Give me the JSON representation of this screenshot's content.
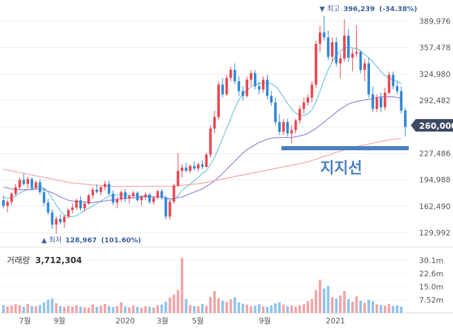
{
  "chart_data": {
    "type": "candlestick",
    "price_axis": {
      "ticks": [
        389976,
        357478,
        324980,
        292482,
        260000,
        227486,
        194988,
        162490,
        129992
      ],
      "tick_labels": [
        "389,976",
        "357,478",
        "324,980",
        "292,482",
        "260,000",
        "227,486",
        "194,988",
        "162,490",
        "129,992"
      ],
      "ylim": [
        114000,
        409000
      ]
    },
    "current_price": {
      "value": 260000,
      "label": "260,000"
    },
    "high_marker": {
      "prefix": "▼ 최고",
      "value": 396239,
      "label": "396,239",
      "change": "(-34.38%)"
    },
    "low_marker": {
      "prefix": "▲ 최저",
      "value": 128967,
      "label": "128,967",
      "change": "(101.60%)"
    },
    "annotation": {
      "text": "지지선",
      "level": 231000
    },
    "x_axis": {
      "tick_labels": [
        "7월",
        "9월",
        "2020",
        "3월",
        "5월",
        "9월",
        "2021"
      ]
    },
    "volume": {
      "title": "거래량",
      "current": "3,712,304",
      "tick_labels": [
        "30.1m",
        "22.6m",
        "15.0m",
        "7.52m"
      ],
      "tick_values": [
        30.1,
        22.6,
        15.0,
        7.52
      ],
      "max": 34
    },
    "ma_series": [
      {
        "key": "ma_short",
        "color": "#72c8dc"
      },
      {
        "key": "ma_mid",
        "color": "#9b86d6"
      },
      {
        "key": "ma_long",
        "color": "#f0a8a8"
      }
    ],
    "colors": {
      "up": "#e9444f",
      "down": "#2f86d8",
      "vol_up": "#f2a3a6",
      "vol_down": "#8ec2ec",
      "marker": "#3c5f9e",
      "support": "#4a7fc1",
      "current_tag": "#3c4a63"
    },
    "candles": [
      [
        170000,
        176000,
        160000,
        163000
      ],
      [
        163000,
        170000,
        155000,
        168000
      ],
      [
        168000,
        180000,
        164000,
        178000
      ],
      [
        178000,
        190000,
        175000,
        186000
      ],
      [
        186000,
        198000,
        183000,
        195000
      ],
      [
        195000,
        203000,
        188000,
        190000
      ],
      [
        190000,
        199000,
        184000,
        196000
      ],
      [
        196000,
        198000,
        182000,
        185000
      ],
      [
        185000,
        194000,
        183000,
        192000
      ],
      [
        192000,
        196000,
        177000,
        180000
      ],
      [
        180000,
        185000,
        163000,
        167000
      ],
      [
        167000,
        172000,
        152000,
        155000
      ],
      [
        155000,
        159000,
        135000,
        140000
      ],
      [
        140000,
        150000,
        129000,
        147000
      ],
      [
        147000,
        153000,
        140000,
        143000
      ],
      [
        143000,
        152000,
        136000,
        150000
      ],
      [
        150000,
        160000,
        147000,
        158000
      ],
      [
        158000,
        166000,
        154000,
        161000
      ],
      [
        161000,
        172000,
        158000,
        170000
      ],
      [
        170000,
        175000,
        157000,
        160000
      ],
      [
        160000,
        168000,
        156000,
        166000
      ],
      [
        166000,
        178000,
        164000,
        176000
      ],
      [
        176000,
        186000,
        172000,
        183000
      ],
      [
        183000,
        190000,
        178000,
        180000
      ],
      [
        180000,
        188000,
        176000,
        186000
      ],
      [
        186000,
        194000,
        182000,
        190000
      ],
      [
        190000,
        194000,
        176000,
        178000
      ],
      [
        178000,
        182000,
        164000,
        167000
      ],
      [
        167000,
        174000,
        160000,
        171000
      ],
      [
        171000,
        182000,
        168000,
        180000
      ],
      [
        180000,
        184000,
        168000,
        172000
      ],
      [
        172000,
        177000,
        166000,
        175000
      ],
      [
        175000,
        182000,
        172000,
        179000
      ],
      [
        179000,
        181000,
        168000,
        170000
      ],
      [
        170000,
        176000,
        163000,
        174000
      ],
      [
        174000,
        180000,
        170000,
        177000
      ],
      [
        177000,
        179000,
        165000,
        168000
      ],
      [
        168000,
        175000,
        164000,
        173000
      ],
      [
        173000,
        183000,
        171000,
        181000
      ],
      [
        181000,
        184000,
        170000,
        173000
      ],
      [
        173000,
        176000,
        146000,
        150000
      ],
      [
        150000,
        170000,
        146000,
        168000
      ],
      [
        168000,
        190000,
        166000,
        188000
      ],
      [
        188000,
        228000,
        186000,
        206000
      ],
      [
        206000,
        214000,
        198000,
        210000
      ],
      [
        210000,
        216000,
        204000,
        206000
      ],
      [
        206000,
        214000,
        203000,
        212000
      ],
      [
        212000,
        218000,
        206000,
        209000
      ],
      [
        209000,
        216000,
        205000,
        214000
      ],
      [
        214000,
        219000,
        208000,
        211000
      ],
      [
        211000,
        228000,
        210000,
        226000
      ],
      [
        226000,
        262000,
        222000,
        258000
      ],
      [
        258000,
        280000,
        252000,
        272000
      ],
      [
        272000,
        316000,
        268000,
        312000
      ],
      [
        312000,
        320000,
        296000,
        300000
      ],
      [
        300000,
        324000,
        298000,
        320000
      ],
      [
        320000,
        334000,
        316000,
        330000
      ],
      [
        330000,
        338000,
        312000,
        316000
      ],
      [
        316000,
        322000,
        298000,
        304000
      ],
      [
        304000,
        310000,
        292000,
        298000
      ],
      [
        298000,
        322000,
        296000,
        318000
      ],
      [
        318000,
        330000,
        310000,
        326000
      ],
      [
        326000,
        330000,
        306000,
        310000
      ],
      [
        310000,
        316000,
        300000,
        306000
      ],
      [
        306000,
        322000,
        302000,
        318000
      ],
      [
        318000,
        324000,
        294000,
        298000
      ],
      [
        298000,
        304000,
        286000,
        290000
      ],
      [
        290000,
        296000,
        262000,
        266000
      ],
      [
        266000,
        276000,
        250000,
        254000
      ],
      [
        254000,
        270000,
        250000,
        266000
      ],
      [
        266000,
        270000,
        248000,
        252000
      ],
      [
        252000,
        262000,
        240000,
        256000
      ],
      [
        256000,
        270000,
        252000,
        268000
      ],
      [
        268000,
        286000,
        264000,
        282000
      ],
      [
        282000,
        296000,
        276000,
        290000
      ],
      [
        290000,
        300000,
        286000,
        296000
      ],
      [
        296000,
        316000,
        290000,
        312000
      ],
      [
        312000,
        366000,
        308000,
        362000
      ],
      [
        362000,
        384000,
        352000,
        376000
      ],
      [
        376000,
        396239,
        366000,
        370000
      ],
      [
        370000,
        378000,
        342000,
        346000
      ],
      [
        346000,
        370000,
        340000,
        364000
      ],
      [
        364000,
        370000,
        334000,
        338000
      ],
      [
        338000,
        350000,
        320000,
        344000
      ],
      [
        344000,
        392000,
        340000,
        372000
      ],
      [
        372000,
        380000,
        340000,
        345000
      ],
      [
        345000,
        356000,
        328000,
        350000
      ],
      [
        350000,
        385000,
        346000,
        352000
      ],
      [
        352000,
        354000,
        326000,
        330000
      ],
      [
        330000,
        344000,
        316000,
        338000
      ],
      [
        338000,
        345000,
        296000,
        300000
      ],
      [
        300000,
        310000,
        278000,
        282000
      ],
      [
        282000,
        300000,
        278000,
        296000
      ],
      [
        296000,
        302000,
        278000,
        284000
      ],
      [
        284000,
        308000,
        280000,
        302000
      ],
      [
        302000,
        328000,
        300000,
        324000
      ],
      [
        324000,
        328000,
        306000,
        310000
      ],
      [
        310000,
        316000,
        300000,
        304000
      ],
      [
        304000,
        310000,
        276000,
        280000
      ],
      [
        280000,
        284000,
        248000,
        260000
      ]
    ],
    "ma_short": [
      174000,
      172000,
      173000,
      175000,
      179000,
      181000,
      183000,
      184000,
      186000,
      187000,
      185000,
      180000,
      172000,
      164000,
      157000,
      152000,
      150000,
      150000,
      151000,
      154000,
      158000,
      160000,
      163000,
      166000,
      169000,
      172000,
      175000,
      176000,
      176000,
      177000,
      177000,
      176000,
      176000,
      175000,
      175000,
      175000,
      175000,
      174000,
      174000,
      174000,
      172000,
      170000,
      171000,
      176000,
      182000,
      186000,
      190000,
      194000,
      198000,
      203000,
      206000,
      214000,
      222000,
      234000,
      246000,
      258000,
      270000,
      283000,
      293000,
      301000,
      305000,
      309000,
      312000,
      313000,
      314000,
      314000,
      313000,
      310000,
      304000,
      297000,
      289000,
      282000,
      277000,
      274000,
      274000,
      276000,
      281000,
      291000,
      304000,
      318000,
      330000,
      340000,
      348000,
      353000,
      357000,
      358000,
      357000,
      356000,
      353000,
      349000,
      345000,
      340000,
      334000,
      328000,
      323000,
      320000,
      318000,
      316000,
      313000
    ],
    "ma_mid": [
      186000,
      185000,
      184000,
      183000,
      183000,
      183000,
      183000,
      183000,
      184000,
      184000,
      183000,
      181000,
      179000,
      177000,
      174000,
      172000,
      170000,
      169000,
      168000,
      168000,
      168000,
      167000,
      167000,
      168000,
      168000,
      169000,
      170000,
      170000,
      171000,
      172000,
      172000,
      173000,
      173000,
      173000,
      174000,
      174000,
      174000,
      174000,
      174000,
      174000,
      173000,
      172000,
      172000,
      173000,
      174000,
      176000,
      178000,
      180000,
      182000,
      184000,
      187000,
      190000,
      194000,
      198000,
      203000,
      208000,
      213000,
      218000,
      223000,
      228000,
      232000,
      235000,
      238000,
      241000,
      243000,
      245000,
      246000,
      247000,
      247000,
      247000,
      247000,
      247000,
      248000,
      249000,
      250000,
      252000,
      255000,
      258000,
      262000,
      266000,
      270000,
      274000,
      278000,
      282000,
      285000,
      288000,
      290000,
      291000,
      292000,
      293000,
      294000,
      295000,
      296000,
      297000,
      297000,
      297000,
      297000,
      296000,
      295000
    ],
    "ma_long": [
      208000,
      207000,
      206000,
      205000,
      204000,
      203000,
      202000,
      201000,
      200000,
      199000,
      198000,
      197000,
      196000,
      195000,
      194000,
      193000,
      192000,
      191000,
      191000,
      190000,
      190000,
      189000,
      189000,
      188000,
      188000,
      188000,
      187000,
      187000,
      187000,
      187000,
      187000,
      187000,
      187000,
      187000,
      187000,
      187000,
      187000,
      187000,
      187000,
      187000,
      187000,
      187000,
      187000,
      188000,
      188000,
      189000,
      189000,
      190000,
      190000,
      191000,
      192000,
      193000,
      194000,
      195000,
      196000,
      197000,
      198000,
      199000,
      200000,
      201000,
      202000,
      203000,
      204000,
      205000,
      206000,
      207000,
      208000,
      209000,
      210000,
      211000,
      212000,
      213000,
      214000,
      215000,
      216000,
      217000,
      219000,
      220000,
      222000,
      224000,
      225000,
      227000,
      229000,
      230000,
      232000,
      233000,
      235000,
      236000,
      237000,
      238000,
      239000,
      240000,
      241000,
      242000,
      243000,
      244000,
      245000,
      245000,
      246000
    ],
    "volumes": [
      4.5,
      3.8,
      4.2,
      5.0,
      4.4,
      3.6,
      5.2,
      4.0,
      3.9,
      4.6,
      6.0,
      7.5,
      8.2,
      5.6,
      4.0,
      3.5,
      4.1,
      3.8,
      4.4,
      3.7,
      3.3,
      3.0,
      4.8,
      3.6,
      4.2,
      5.1,
      3.9,
      3.4,
      4.0,
      6.2,
      3.8,
      3.2,
      4.3,
      3.5,
      3.1,
      3.9,
      3.6,
      3.0,
      4.4,
      4.8,
      6.5,
      8.8,
      10.5,
      13.0,
      31.5,
      8.0,
      4.6,
      4.0,
      3.8,
      5.2,
      4.1,
      9.2,
      12.5,
      8.5,
      7.0,
      6.4,
      7.8,
      9.0,
      6.1,
      5.4,
      4.8,
      3.9,
      4.2,
      5.0,
      3.8,
      3.6,
      4.4,
      5.5,
      6.2,
      4.8,
      3.9,
      4.3,
      3.8,
      4.5,
      5.0,
      6.8,
      8.0,
      13.0,
      19.0,
      14.0,
      15.5,
      9.0,
      8.2,
      10.0,
      12.5,
      8.0,
      6.5,
      9.5,
      7.0,
      5.8,
      7.5,
      6.8,
      5.0,
      4.6,
      4.2,
      5.2,
      4.0,
      4.4,
      3.7
    ]
  }
}
